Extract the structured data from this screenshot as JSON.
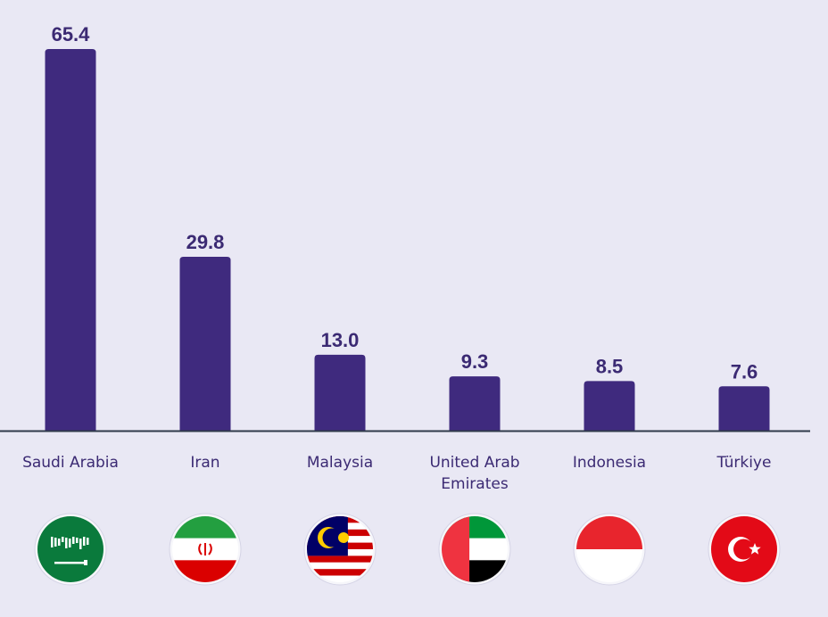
{
  "chart_data": {
    "type": "bar",
    "categories": [
      "Saudi Arabia",
      "Iran",
      "Malaysia",
      "United Arab Emirates",
      "Indonesia",
      "Türkiye"
    ],
    "category_lines": [
      [
        "Saudi Arabia"
      ],
      [
        "Iran"
      ],
      [
        "Malaysia"
      ],
      [
        "United Arab",
        "Emirates"
      ],
      [
        "Indonesia"
      ],
      [
        "Türkiye"
      ]
    ],
    "values": [
      65.4,
      29.8,
      13.0,
      9.3,
      8.5,
      7.6
    ],
    "value_labels": [
      "65.4",
      "29.8",
      "13.0",
      "9.3",
      "8.5",
      "7.6"
    ],
    "ylim": [
      0,
      65.4
    ],
    "grid": false,
    "bar_color": "#3F2A7E",
    "baseline_color": "#2F3A4A",
    "label_color": "#3B2A73"
  },
  "flags": [
    {
      "country": "Saudi Arabia",
      "icon": "saudi-arabia-flag-icon",
      "colors": [
        "#0A7A3C",
        "#FFFFFF"
      ]
    },
    {
      "country": "Iran",
      "icon": "iran-flag-icon",
      "colors": [
        "#239F40",
        "#FFFFFF",
        "#DA0000"
      ]
    },
    {
      "country": "Malaysia",
      "icon": "malaysia-flag-icon",
      "colors": [
        "#010066",
        "#CC0001",
        "#FFFFFF",
        "#FFCC00"
      ]
    },
    {
      "country": "United Arab Emirates",
      "icon": "uae-flag-icon",
      "colors": [
        "#EF3340",
        "#009739",
        "#FFFFFF",
        "#000000"
      ]
    },
    {
      "country": "Indonesia",
      "icon": "indonesia-flag-icon",
      "colors": [
        "#E8252D",
        "#FFFFFF"
      ]
    },
    {
      "country": "Türkiye",
      "icon": "turkiye-flag-icon",
      "colors": [
        "#E30A17",
        "#FFFFFF"
      ]
    }
  ]
}
